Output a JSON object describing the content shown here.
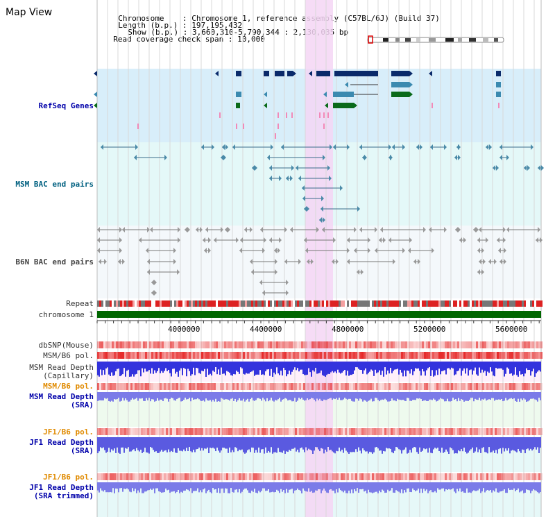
{
  "view": {
    "title": "Map View",
    "info": {
      "chromosome_label": "Chromosome",
      "chromosome_value": "Chromosome 1, reference assembly (C57BL/6J) (Build 37)",
      "length_label": "Length (b.p.)",
      "length_value": "197,195,432",
      "show_label": "Show (b.p.)",
      "show_value": "3,660,310-5,790,344 : 2,130,035 bp",
      "coverage_label": "Read coverage check span",
      "coverage_value": "10,000"
    }
  },
  "tracks": {
    "refseq": "RefSeq Genes",
    "msm_bac": "MSM BAC end pairs",
    "b6n_bac": "B6N BAC end pairs",
    "repeat": "Repeat",
    "chromosome": "chromosome 1",
    "dbsnp": "dbSNP(Mouse)",
    "msm_b6_pol_1": "MSM/B6 pol.",
    "msm_read_depth_cap_1": "MSM Read Depth",
    "msm_read_depth_cap_2": "(Capillary)",
    "msm_b6_pol_2": "MSM/B6 pol.",
    "msm_read_depth_sra_1": "MSM Read Depth",
    "msm_read_depth_sra_2": "(SRA)",
    "jf1_b6_pol_1": "JF1/B6 pol.",
    "jf1_read_depth_sra_1": "JF1 Read Depth",
    "jf1_read_depth_sra_2": "(SRA)",
    "jf1_b6_pol_2": "JF1/B6 pol.",
    "jf1_read_depth_trim_1": "JF1 Read Depth",
    "jf1_read_depth_trim_2": "(SRA trimmed)"
  },
  "axis": {
    "ticks": [
      "4000000",
      "4400000",
      "4800000",
      "5200000",
      "5600000"
    ]
  },
  "colors": {
    "refseq_bg": "#d8eefa",
    "bac_bg": "#e4f8f8",
    "highlight": "#f5d6f5",
    "gene_dark": "#0a2a6a",
    "gene_mid": "#3b8ab0",
    "gene_green": "#0a6a1a",
    "chromosome_bar": "#006600",
    "repeat_red": "#dd2222",
    "depth_blue": "#3333dd"
  }
}
